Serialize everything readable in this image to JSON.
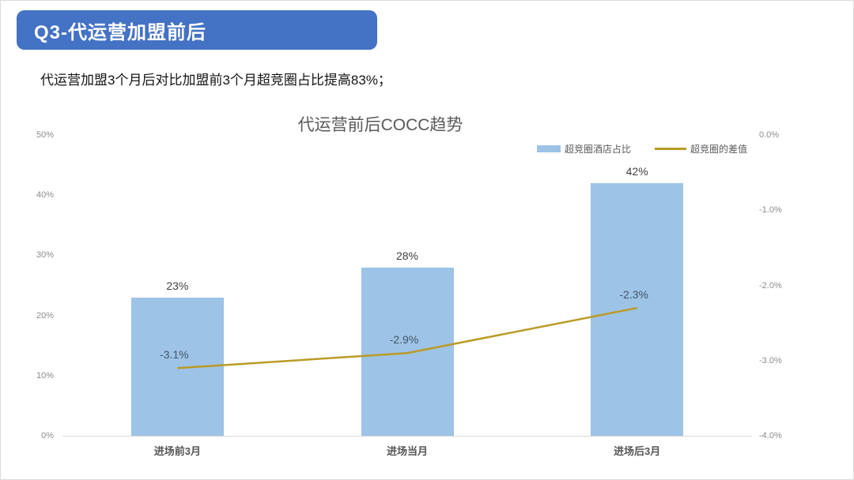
{
  "page": {
    "header_title": "Q3-代运营加盟前后",
    "subtitle": "代运营加盟3个月后对比加盟前3个月超竞圈占比提高83%；"
  },
  "colors": {
    "header_bg": "#4472c4",
    "bar_fill": "#9dc3e6",
    "line_stroke": "#ba9b25",
    "bar_label_text": "#404040",
    "line_label_text": "#44546a",
    "axis_text": "#8c8c8c",
    "axis_line": "#d9d9d9",
    "title_text": "#595959"
  },
  "chart_data": {
    "type": "bar",
    "title": "代运营前后COCC趋势",
    "categories": [
      "进场前3月",
      "进场当月",
      "进场后3月"
    ],
    "series": [
      {
        "name": "超竞圈酒店占比",
        "type": "bar",
        "axis": "left",
        "values": [
          23,
          28,
          42
        ],
        "labels": [
          "23%",
          "28%",
          "42%"
        ]
      },
      {
        "name": "超竞圈的差值",
        "type": "line",
        "axis": "right",
        "values": [
          -3.1,
          -2.9,
          -2.3
        ],
        "labels": [
          "-3.1%",
          "-2.9%",
          "-2.3%"
        ]
      }
    ],
    "left_axis": {
      "min": 0,
      "max": 50,
      "ticks": [
        "0%",
        "10%",
        "20%",
        "30%",
        "40%",
        "50%"
      ]
    },
    "right_axis": {
      "min": -4,
      "max": 0,
      "ticks": [
        "0.0%",
        "-1.0%",
        "-2.0%",
        "-3.0%",
        "-4.0%"
      ]
    },
    "legend_position": "top-right",
    "grid": false
  }
}
